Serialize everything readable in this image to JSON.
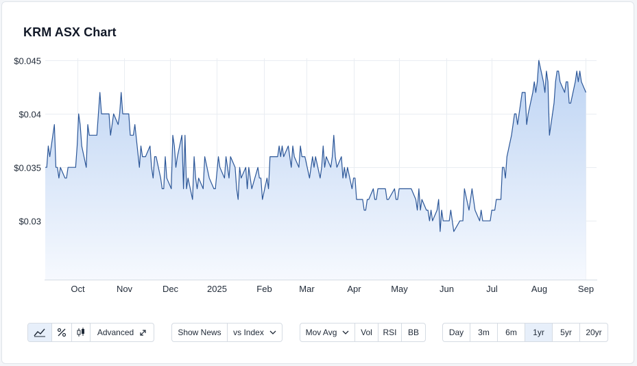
{
  "title": "KRM ASX Chart",
  "colors": {
    "line": "#2a5597",
    "fill_top": "#bcd3f3",
    "fill_bottom": "#f6f9fe",
    "grid": "#e9edf2",
    "active": "#e7effa"
  },
  "toolbar": {
    "chart_type_icons": [
      "line-chart-icon",
      "percent-icon",
      "candlestick-icon"
    ],
    "advanced_label": "Advanced",
    "advanced_icon": "expand-icon",
    "show_news_label": "Show News",
    "vs_index_label": "vs Index",
    "mov_avg_label": "Mov Avg",
    "vol_label": "Vol",
    "rsi_label": "RSI",
    "bb_label": "BB",
    "ranges": [
      "Day",
      "3m",
      "6m",
      "1yr",
      "5yr",
      "20yr"
    ],
    "active_range": "1yr",
    "active_chart_type": "line-chart-icon"
  },
  "chart_data": {
    "type": "area",
    "title": "KRM ASX Chart",
    "xlabel": "",
    "ylabel": "",
    "grid": true,
    "legend": "none",
    "ylim": [
      0.0245,
      0.0452
    ],
    "y_ticks": [
      {
        "value": 0.03,
        "label": "$0.03"
      },
      {
        "value": 0.035,
        "label": "$0.035"
      },
      {
        "value": 0.04,
        "label": "$0.04"
      },
      {
        "value": 0.045,
        "label": "$0.045"
      }
    ],
    "x_range": [
      "2024-09-10",
      "2025-09-08"
    ],
    "x_ticks": [
      {
        "date": "2024-10-01",
        "label": "Oct"
      },
      {
        "date": "2024-11-01",
        "label": "Nov"
      },
      {
        "date": "2024-12-01",
        "label": "Dec"
      },
      {
        "date": "2025-01-01",
        "label": "2025"
      },
      {
        "date": "2025-02-01",
        "label": "Feb"
      },
      {
        "date": "2025-03-01",
        "label": "Mar"
      },
      {
        "date": "2025-04-01",
        "label": "Apr"
      },
      {
        "date": "2025-05-01",
        "label": "May"
      },
      {
        "date": "2025-06-01",
        "label": "Jun"
      },
      {
        "date": "2025-07-01",
        "label": "Jul"
      },
      {
        "date": "2025-08-01",
        "label": "Aug"
      },
      {
        "date": "2025-09-01",
        "label": "Sep"
      }
    ],
    "series": [
      {
        "values": [
          [
            "2024-09-10",
            0.035
          ],
          [
            "2024-09-11",
            0.035
          ],
          [
            "2024-09-12",
            0.037
          ],
          [
            "2024-09-13",
            0.036
          ],
          [
            "2024-09-16",
            0.039
          ],
          [
            "2024-09-17",
            0.035
          ],
          [
            "2024-09-18",
            0.035
          ],
          [
            "2024-09-19",
            0.034
          ],
          [
            "2024-09-20",
            0.035
          ],
          [
            "2024-09-23",
            0.034
          ],
          [
            "2024-09-24",
            0.034
          ],
          [
            "2024-09-25",
            0.035
          ],
          [
            "2024-09-26",
            0.035
          ],
          [
            "2024-09-27",
            0.035
          ],
          [
            "2024-09-30",
            0.035
          ],
          [
            "2024-10-01",
            0.037
          ],
          [
            "2024-10-02",
            0.04
          ],
          [
            "2024-10-03",
            0.039
          ],
          [
            "2024-10-04",
            0.037
          ],
          [
            "2024-10-07",
            0.035
          ],
          [
            "2024-10-08",
            0.039
          ],
          [
            "2024-10-09",
            0.038
          ],
          [
            "2024-10-10",
            0.038
          ],
          [
            "2024-10-11",
            0.038
          ],
          [
            "2024-10-14",
            0.038
          ],
          [
            "2024-10-15",
            0.04
          ],
          [
            "2024-10-16",
            0.042
          ],
          [
            "2024-10-17",
            0.04
          ],
          [
            "2024-10-18",
            0.04
          ],
          [
            "2024-10-21",
            0.04
          ],
          [
            "2024-10-22",
            0.04
          ],
          [
            "2024-10-23",
            0.038
          ],
          [
            "2024-10-24",
            0.039
          ],
          [
            "2024-10-25",
            0.04
          ],
          [
            "2024-10-28",
            0.039
          ],
          [
            "2024-10-29",
            0.04
          ],
          [
            "2024-10-30",
            0.042
          ],
          [
            "2024-10-31",
            0.04
          ],
          [
            "2024-11-01",
            0.04
          ],
          [
            "2024-11-04",
            0.04
          ],
          [
            "2024-11-05",
            0.038
          ],
          [
            "2024-11-06",
            0.038
          ],
          [
            "2024-11-07",
            0.038
          ],
          [
            "2024-11-08",
            0.039
          ],
          [
            "2024-11-11",
            0.035
          ],
          [
            "2024-11-12",
            0.037
          ],
          [
            "2024-11-13",
            0.036
          ],
          [
            "2024-11-14",
            0.036
          ],
          [
            "2024-11-15",
            0.036
          ],
          [
            "2024-11-18",
            0.037
          ],
          [
            "2024-11-19",
            0.035
          ],
          [
            "2024-11-20",
            0.034
          ],
          [
            "2024-11-21",
            0.036
          ],
          [
            "2024-11-22",
            0.036
          ],
          [
            "2024-11-25",
            0.034
          ],
          [
            "2024-11-26",
            0.033
          ],
          [
            "2024-11-27",
            0.033
          ],
          [
            "2024-11-28",
            0.036
          ],
          [
            "2024-11-29",
            0.034
          ],
          [
            "2024-12-02",
            0.033
          ],
          [
            "2024-12-03",
            0.038
          ],
          [
            "2024-12-04",
            0.037
          ],
          [
            "2024-12-05",
            0.035
          ],
          [
            "2024-12-06",
            0.036
          ],
          [
            "2024-12-09",
            0.038
          ],
          [
            "2024-12-10",
            0.033
          ],
          [
            "2024-12-11",
            0.038
          ],
          [
            "2024-12-12",
            0.033
          ],
          [
            "2024-12-13",
            0.034
          ],
          [
            "2024-12-16",
            0.032
          ],
          [
            "2024-12-17",
            0.036
          ],
          [
            "2024-12-18",
            0.034
          ],
          [
            "2024-12-19",
            0.033
          ],
          [
            "2024-12-20",
            0.034
          ],
          [
            "2024-12-23",
            0.033
          ],
          [
            "2024-12-24",
            0.036
          ],
          [
            "2024-12-27",
            0.034
          ],
          [
            "2024-12-30",
            0.033
          ],
          [
            "2024-12-31",
            0.033
          ],
          [
            "2025-01-02",
            0.036
          ],
          [
            "2025-01-03",
            0.035
          ],
          [
            "2025-01-06",
            0.034
          ],
          [
            "2025-01-07",
            0.036
          ],
          [
            "2025-01-08",
            0.035
          ],
          [
            "2025-01-09",
            0.034
          ],
          [
            "2025-01-10",
            0.036
          ],
          [
            "2025-01-13",
            0.035
          ],
          [
            "2025-01-14",
            0.033
          ],
          [
            "2025-01-15",
            0.032
          ],
          [
            "2025-01-16",
            0.035
          ],
          [
            "2025-01-17",
            0.034
          ],
          [
            "2025-01-20",
            0.035
          ],
          [
            "2025-01-21",
            0.033
          ],
          [
            "2025-01-22",
            0.035
          ],
          [
            "2025-01-23",
            0.034
          ],
          [
            "2025-01-24",
            0.033
          ],
          [
            "2025-01-28",
            0.035
          ],
          [
            "2025-01-29",
            0.034
          ],
          [
            "2025-01-30",
            0.034
          ],
          [
            "2025-01-31",
            0.032
          ],
          [
            "2025-02-03",
            0.034
          ],
          [
            "2025-02-04",
            0.033
          ],
          [
            "2025-02-05",
            0.036
          ],
          [
            "2025-02-06",
            0.036
          ],
          [
            "2025-02-07",
            0.036
          ],
          [
            "2025-02-10",
            0.036
          ],
          [
            "2025-02-11",
            0.037
          ],
          [
            "2025-02-12",
            0.036
          ],
          [
            "2025-02-13",
            0.037
          ],
          [
            "2025-02-14",
            0.036
          ],
          [
            "2025-02-17",
            0.037
          ],
          [
            "2025-02-18",
            0.036
          ],
          [
            "2025-02-19",
            0.035
          ],
          [
            "2025-02-20",
            0.037
          ],
          [
            "2025-02-21",
            0.036
          ],
          [
            "2025-02-24",
            0.035
          ],
          [
            "2025-02-25",
            0.037
          ],
          [
            "2025-02-26",
            0.036
          ],
          [
            "2025-02-27",
            0.036
          ],
          [
            "2025-02-28",
            0.036
          ],
          [
            "2025-03-03",
            0.034
          ],
          [
            "2025-03-04",
            0.035
          ],
          [
            "2025-03-05",
            0.036
          ],
          [
            "2025-03-06",
            0.035
          ],
          [
            "2025-03-07",
            0.036
          ],
          [
            "2025-03-10",
            0.034
          ],
          [
            "2025-03-11",
            0.035
          ],
          [
            "2025-03-12",
            0.037
          ],
          [
            "2025-03-13",
            0.035
          ],
          [
            "2025-03-14",
            0.036
          ],
          [
            "2025-03-17",
            0.035
          ],
          [
            "2025-03-18",
            0.036
          ],
          [
            "2025-03-19",
            0.038
          ],
          [
            "2025-03-20",
            0.036
          ],
          [
            "2025-03-21",
            0.035
          ],
          [
            "2025-03-24",
            0.036
          ],
          [
            "2025-03-25",
            0.034
          ],
          [
            "2025-03-26",
            0.035
          ],
          [
            "2025-03-27",
            0.034
          ],
          [
            "2025-03-28",
            0.035
          ],
          [
            "2025-03-31",
            0.033
          ],
          [
            "2025-04-01",
            0.034
          ],
          [
            "2025-04-02",
            0.034
          ],
          [
            "2025-04-03",
            0.032
          ],
          [
            "2025-04-04",
            0.032
          ],
          [
            "2025-04-07",
            0.032
          ],
          [
            "2025-04-08",
            0.031
          ],
          [
            "2025-04-09",
            0.031
          ],
          [
            "2025-04-10",
            0.032
          ],
          [
            "2025-04-11",
            0.032
          ],
          [
            "2025-04-14",
            0.033
          ],
          [
            "2025-04-15",
            0.032
          ],
          [
            "2025-04-16",
            0.032
          ],
          [
            "2025-04-17",
            0.033
          ],
          [
            "2025-04-22",
            0.033
          ],
          [
            "2025-04-23",
            0.032
          ],
          [
            "2025-04-24",
            0.032
          ],
          [
            "2025-04-28",
            0.033
          ],
          [
            "2025-04-29",
            0.032
          ],
          [
            "2025-04-30",
            0.032
          ],
          [
            "2025-05-01",
            0.033
          ],
          [
            "2025-05-02",
            0.033
          ],
          [
            "2025-05-05",
            0.033
          ],
          [
            "2025-05-06",
            0.033
          ],
          [
            "2025-05-07",
            0.033
          ],
          [
            "2025-05-08",
            0.033
          ],
          [
            "2025-05-09",
            0.033
          ],
          [
            "2025-05-12",
            0.032
          ],
          [
            "2025-05-13",
            0.031
          ],
          [
            "2025-05-14",
            0.033
          ],
          [
            "2025-05-15",
            0.031
          ],
          [
            "2025-05-16",
            0.032
          ],
          [
            "2025-05-19",
            0.031
          ],
          [
            "2025-05-20",
            0.031
          ],
          [
            "2025-05-21",
            0.03
          ],
          [
            "2025-05-22",
            0.031
          ],
          [
            "2025-05-23",
            0.03
          ],
          [
            "2025-05-26",
            0.031
          ],
          [
            "2025-05-27",
            0.032
          ],
          [
            "2025-05-28",
            0.029
          ],
          [
            "2025-05-29",
            0.031
          ],
          [
            "2025-05-30",
            0.03
          ],
          [
            "2025-06-02",
            0.03
          ],
          [
            "2025-06-03",
            0.03
          ],
          [
            "2025-06-04",
            0.031
          ],
          [
            "2025-06-05",
            0.03
          ],
          [
            "2025-06-06",
            0.029
          ],
          [
            "2025-06-10",
            0.03
          ],
          [
            "2025-06-11",
            0.03
          ],
          [
            "2025-06-12",
            0.03
          ],
          [
            "2025-06-13",
            0.033
          ],
          [
            "2025-06-16",
            0.031
          ],
          [
            "2025-06-17",
            0.032
          ],
          [
            "2025-06-18",
            0.033
          ],
          [
            "2025-06-19",
            0.032
          ],
          [
            "2025-06-20",
            0.031
          ],
          [
            "2025-06-23",
            0.03
          ],
          [
            "2025-06-24",
            0.031
          ],
          [
            "2025-06-25",
            0.03
          ],
          [
            "2025-06-26",
            0.03
          ],
          [
            "2025-06-27",
            0.03
          ],
          [
            "2025-06-30",
            0.03
          ],
          [
            "2025-07-01",
            0.031
          ],
          [
            "2025-07-02",
            0.031
          ],
          [
            "2025-07-03",
            0.031
          ],
          [
            "2025-07-04",
            0.032
          ],
          [
            "2025-07-07",
            0.032
          ],
          [
            "2025-07-08",
            0.035
          ],
          [
            "2025-07-09",
            0.035
          ],
          [
            "2025-07-10",
            0.034
          ],
          [
            "2025-07-11",
            0.036
          ],
          [
            "2025-07-14",
            0.038
          ],
          [
            "2025-07-15",
            0.039
          ],
          [
            "2025-07-16",
            0.04
          ],
          [
            "2025-07-17",
            0.04
          ],
          [
            "2025-07-18",
            0.039
          ],
          [
            "2025-07-21",
            0.042
          ],
          [
            "2025-07-22",
            0.042
          ],
          [
            "2025-07-23",
            0.042
          ],
          [
            "2025-07-24",
            0.039
          ],
          [
            "2025-07-25",
            0.04
          ],
          [
            "2025-07-28",
            0.042
          ],
          [
            "2025-07-29",
            0.043
          ],
          [
            "2025-07-30",
            0.042
          ],
          [
            "2025-07-31",
            0.043
          ],
          [
            "2025-08-01",
            0.045
          ],
          [
            "2025-08-04",
            0.043
          ],
          [
            "2025-08-05",
            0.042
          ],
          [
            "2025-08-06",
            0.044
          ],
          [
            "2025-08-07",
            0.043
          ],
          [
            "2025-08-08",
            0.038
          ],
          [
            "2025-08-11",
            0.041
          ],
          [
            "2025-08-12",
            0.043
          ],
          [
            "2025-08-13",
            0.044
          ],
          [
            "2025-08-14",
            0.044
          ],
          [
            "2025-08-15",
            0.043
          ],
          [
            "2025-08-18",
            0.042
          ],
          [
            "2025-08-19",
            0.043
          ],
          [
            "2025-08-20",
            0.043
          ],
          [
            "2025-08-21",
            0.041
          ],
          [
            "2025-08-22",
            0.041
          ],
          [
            "2025-08-25",
            0.043
          ],
          [
            "2025-08-26",
            0.044
          ],
          [
            "2025-08-27",
            0.043
          ],
          [
            "2025-08-28",
            0.044
          ],
          [
            "2025-08-29",
            0.043
          ],
          [
            "2025-09-01",
            0.042
          ]
        ]
      }
    ]
  }
}
